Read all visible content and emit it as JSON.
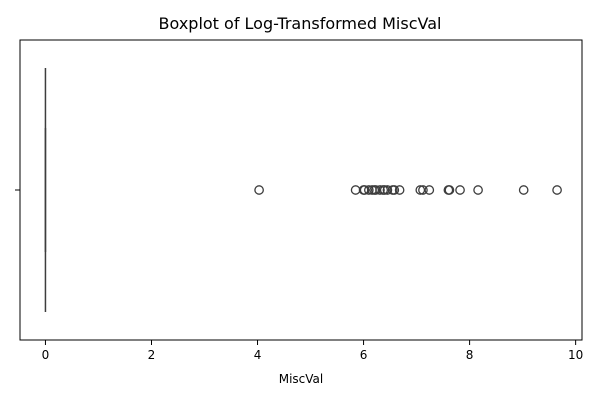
{
  "chart_data": {
    "type": "box",
    "title": "Boxplot of Log-Transformed MiscVal",
    "xlabel": "MiscVal",
    "ylabel": "",
    "xlim": [
      -0.48,
      10.12
    ],
    "xticks": [
      0,
      2,
      4,
      6,
      8,
      10
    ],
    "ytick_labels": [
      ""
    ],
    "grid": false,
    "box": {
      "q1": 0,
      "median": 0,
      "q3": 0,
      "whisker_low": 0,
      "whisker_high": 0
    },
    "outliers": [
      4.03,
      5.85,
      6.0,
      6.02,
      6.1,
      6.16,
      6.2,
      6.23,
      6.31,
      6.37,
      6.4,
      6.45,
      6.55,
      6.58,
      6.68,
      7.07,
      7.12,
      7.24,
      7.6,
      7.62,
      7.82,
      8.16,
      9.02,
      9.65
    ],
    "colors": {
      "outline": "#3d3d3d",
      "outlier_edge": "#3d3d3d",
      "axes": "#000000"
    }
  }
}
